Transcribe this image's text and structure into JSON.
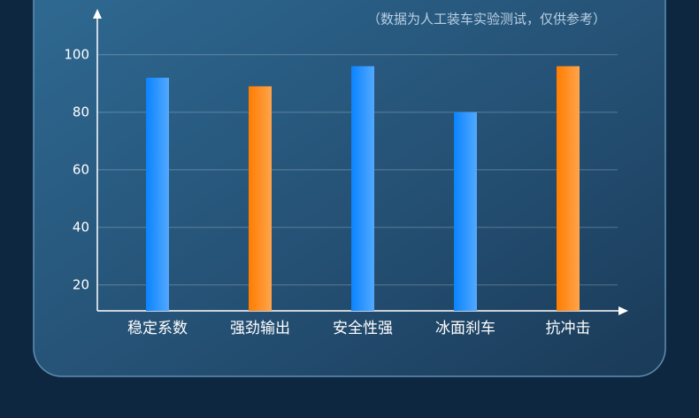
{
  "chart_data": {
    "type": "bar",
    "subtitle": "（数据为人工装车实验测试，仅供参考）",
    "categories": [
      "稳定系数",
      "强劲输出",
      "安全性强",
      "冰面刹车",
      "抗冲击"
    ],
    "values": [
      92,
      89,
      96,
      80,
      96
    ],
    "colors": [
      "#0a84ff",
      "#ff7d00",
      "#0a84ff",
      "#0a84ff",
      "#ff7d00"
    ],
    "ylim": [
      11,
      111
    ],
    "yticks": [
      20,
      40,
      60,
      80,
      100
    ],
    "grid": true
  }
}
